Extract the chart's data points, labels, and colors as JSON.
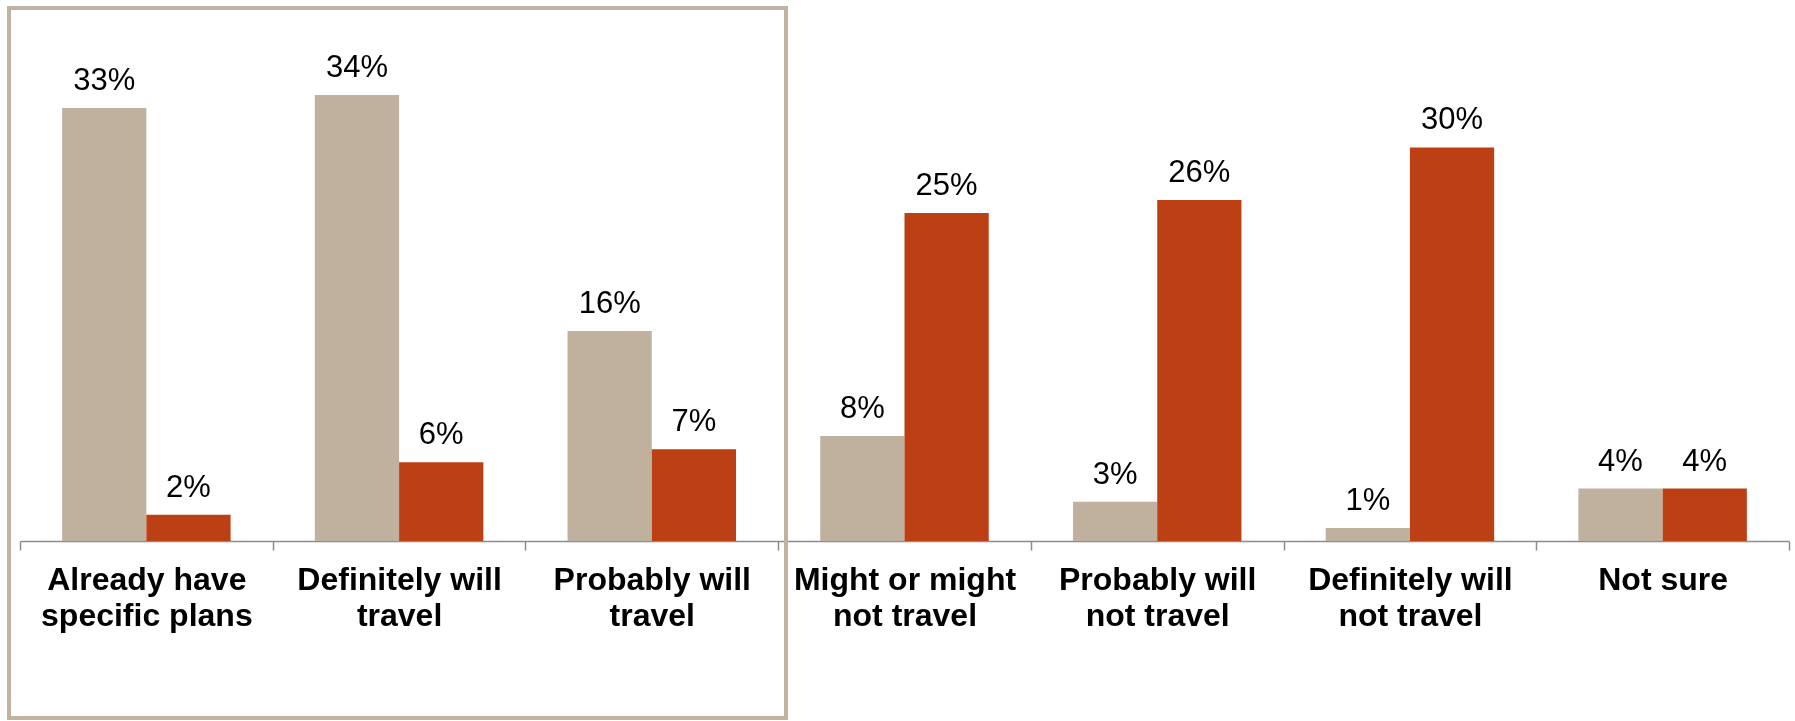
{
  "chart_data": {
    "type": "bar",
    "categories": [
      "Already have specific plans",
      "Definitely will travel",
      "Probably will travel",
      "Might or might not travel",
      "Probably will not travel",
      "Definitely will not travel",
      "Not sure"
    ],
    "series": [
      {
        "color": "#bfb19d",
        "values": [
          33,
          34,
          16,
          8,
          3,
          1,
          4
        ],
        "value_labels": [
          "33%",
          "34%",
          "16%",
          "8%",
          "3%",
          "1%",
          "4%"
        ]
      },
      {
        "color": "#bc4014",
        "values": [
          2,
          6,
          7,
          25,
          26,
          30,
          4
        ],
        "value_labels": [
          "2%",
          "6%",
          "7%",
          "25%",
          "26%",
          "30%",
          "4%"
        ]
      }
    ]
  }
}
